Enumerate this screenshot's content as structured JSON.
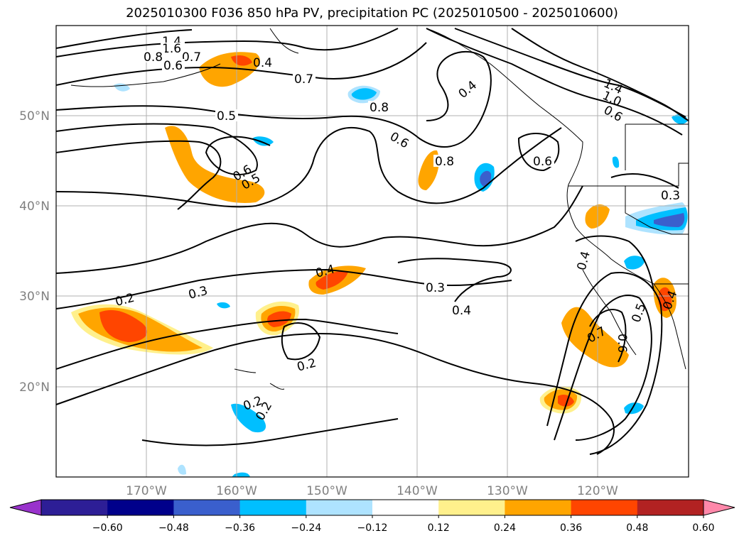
{
  "title": "2025010300 F036 850 hPa PV, precipitation PC (2025010500 - 2025010600)",
  "lon_labels": [
    "170°W",
    "160°W",
    "150°W",
    "140°W",
    "130°W",
    "120°W"
  ],
  "lat_labels": [
    "50°N",
    "40°N",
    "30°N",
    "20°N"
  ],
  "colorbar": {
    "ticks": [
      "−0.60",
      "−0.48",
      "−0.36",
      "−0.24",
      "−0.12",
      "0.12",
      "0.24",
      "0.36",
      "0.48",
      "0.60"
    ],
    "colors": [
      "#9933cc",
      "#2d1e96",
      "#00008b",
      "#3a5fcd",
      "#00bfff",
      "#aee3ff",
      "#ffffff",
      "#fff08c",
      "#ffa500",
      "#ff4500",
      "#b22222",
      "#ff88aa"
    ]
  },
  "contour_labels": [
    "1.4",
    "1.6",
    "0.8",
    "0.7",
    "0.6",
    "0.4",
    "0.7",
    "0.5",
    "0.8",
    "0.6",
    "0.4",
    "1.4",
    "1.0",
    "0.6",
    "0.8",
    "0.6",
    "0.6",
    "0.5",
    "0.3",
    "0.4",
    "0.2",
    "0.3",
    "0.4",
    "0.3",
    "0.4",
    "0.2",
    "0.2",
    "0.2",
    "0.7",
    "0.6",
    "0.5",
    "0.4"
  ]
}
